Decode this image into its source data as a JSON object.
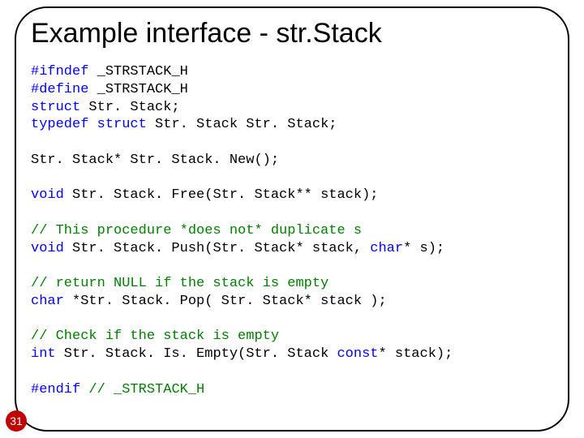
{
  "slide": {
    "title": "Example interface - str.Stack",
    "page_number": "31",
    "title_fontsize": 34,
    "title_color": "#000000",
    "frame_border_color": "#000000",
    "frame_border_radius": 40,
    "background_color": "#ffffff",
    "badge_bg": "#c00000",
    "badge_fg": "#ffffff"
  },
  "code": {
    "font_family": "Consolas",
    "font_size": 17,
    "kw_color": "#0000ff",
    "comment_color": "#008000",
    "text_color": "#000000",
    "l1a": "#ifndef",
    "l1b": " _STRSTACK_H",
    "l2a": "#define",
    "l2b": " _STRSTACK_H",
    "l3a": "struct",
    "l3b": " Str. Stack;",
    "l4a": "typedef",
    "l4b": " ",
    "l4c": "struct",
    "l4d": " Str. Stack Str. Stack;",
    "l5": "Str. Stack* Str. Stack. New();",
    "l6a": "void",
    "l6b": " Str. Stack. Free(Str. Stack** stack);",
    "l7": "// This procedure *does not* duplicate s",
    "l8a": "void",
    "l8b": " Str. Stack. Push(Str. Stack* stack, ",
    "l8c": "char",
    "l8d": "* s);",
    "l9": "// return NULL if the stack is empty",
    "l10a": "char",
    "l10b": " *Str. Stack. Pop( Str. Stack* stack );",
    "l11": "// Check if the stack is empty",
    "l12a": "int",
    "l12b": " Str. Stack. Is. Empty(Str. Stack ",
    "l12c": "const",
    "l12d": "* stack);",
    "l13a": "#endif",
    "l13b": " ",
    "l13c": "// _STRSTACK_H"
  }
}
